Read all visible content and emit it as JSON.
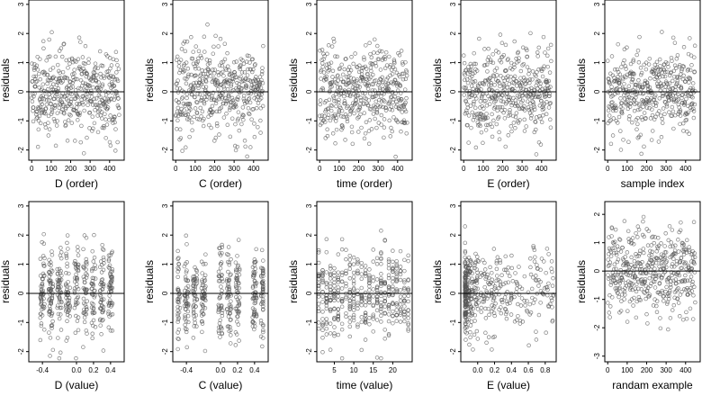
{
  "chart_data": [
    {
      "type": "scatter",
      "xlabel": "D (order)",
      "ylabel": "residuals",
      "xlim": [
        -15,
        475
      ],
      "ylim": [
        -2.35,
        3.15
      ],
      "xticks": [
        0,
        100,
        200,
        300,
        400
      ],
      "yticks": [
        -2,
        -1,
        0,
        1,
        2,
        3
      ],
      "reference_line_y": 0,
      "point_spec": {
        "n": 450,
        "x_mode": "order",
        "seed": 11
      }
    },
    {
      "type": "scatter",
      "xlabel": "C (order)",
      "ylabel": "residuals",
      "xlim": [
        -15,
        475
      ],
      "ylim": [
        -2.35,
        3.15
      ],
      "xticks": [
        0,
        100,
        200,
        300,
        400
      ],
      "yticks": [
        -2,
        -1,
        0,
        1,
        2,
        3
      ],
      "reference_line_y": 0,
      "point_spec": {
        "n": 450,
        "x_mode": "order",
        "seed": 23
      }
    },
    {
      "type": "scatter",
      "xlabel": "time (order)",
      "ylabel": "residuals",
      "xlim": [
        -15,
        475
      ],
      "ylim": [
        -2.35,
        3.15
      ],
      "xticks": [
        0,
        100,
        200,
        300,
        400
      ],
      "yticks": [
        -2,
        -1,
        0,
        1,
        2,
        3
      ],
      "reference_line_y": 0,
      "point_spec": {
        "n": 450,
        "x_mode": "order",
        "seed": 37
      }
    },
    {
      "type": "scatter",
      "xlabel": "E (order)",
      "ylabel": "residuals",
      "xlim": [
        -15,
        475
      ],
      "ylim": [
        -2.35,
        3.15
      ],
      "xticks": [
        0,
        100,
        200,
        300,
        400
      ],
      "yticks": [
        -2,
        -1,
        0,
        1,
        2,
        3
      ],
      "reference_line_y": 0,
      "point_spec": {
        "n": 450,
        "x_mode": "order",
        "seed": 41
      }
    },
    {
      "type": "scatter",
      "xlabel": "sample index",
      "ylabel": "residuals",
      "xlim": [
        -15,
        475
      ],
      "ylim": [
        -2.35,
        3.15
      ],
      "xticks": [
        0,
        100,
        200,
        300,
        400
      ],
      "yticks": [
        -2,
        -1,
        0,
        1,
        2,
        3
      ],
      "reference_line_y": 0,
      "point_spec": {
        "n": 450,
        "x_mode": "order",
        "seed": 53
      }
    },
    {
      "type": "scatter",
      "xlabel": "D (value)",
      "ylabel": "residuals",
      "xlim": [
        -0.56,
        0.56
      ],
      "ylim": [
        -2.35,
        3.15
      ],
      "xticks": [
        -0.4,
        0.0,
        0.2,
        0.4
      ],
      "xtick_labels": [
        "-0.4",
        "0.0",
        "0.2",
        "0.4"
      ],
      "yticks": [
        -2,
        -1,
        0,
        1,
        2,
        3
      ],
      "reference_line_y": 0,
      "point_spec": {
        "n": 450,
        "x_mode": "clustered",
        "x_min": -0.5,
        "x_max": 0.5,
        "x_centers": [
          -0.4,
          -0.3,
          -0.2,
          -0.1,
          0.0,
          0.1,
          0.2,
          0.3,
          0.4
        ],
        "seed": 67
      }
    },
    {
      "type": "scatter",
      "xlabel": "C (value)",
      "ylabel": "residuals",
      "xlim": [
        -0.56,
        0.56
      ],
      "ylim": [
        -2.35,
        3.15
      ],
      "xticks": [
        -0.4,
        0.0,
        0.2,
        0.4
      ],
      "xtick_labels": [
        "-0.4",
        "0.0",
        "0.2",
        "0.4"
      ],
      "yticks": [
        -2,
        -1,
        0,
        1,
        2,
        3
      ],
      "reference_line_y": 0,
      "point_spec": {
        "n": 450,
        "x_mode": "clustered",
        "x_min": -0.5,
        "x_max": 0.5,
        "x_centers": [
          -0.5,
          -0.4,
          -0.3,
          -0.2,
          0.0,
          0.1,
          0.2,
          0.4,
          0.5
        ],
        "seed": 79
      }
    },
    {
      "type": "scatter",
      "xlabel": "time (value)",
      "ylabel": "residuals",
      "xlim": [
        0.5,
        25
      ],
      "ylim": [
        -2.35,
        3.15
      ],
      "xticks": [
        5,
        10,
        15,
        20
      ],
      "xtick_labels": [
        "5",
        "10",
        "15",
        "20"
      ],
      "yticks": [
        -2,
        -1,
        0,
        1,
        2,
        3
      ],
      "reference_line_y": 0,
      "point_spec": {
        "n": 450,
        "x_mode": "integer",
        "x_min": 1,
        "x_max": 24,
        "seed": 83
      }
    },
    {
      "type": "scatter",
      "xlabel": "E (value)",
      "ylabel": "residuals",
      "xlim": [
        -0.2,
        0.93
      ],
      "ylim": [
        -2.35,
        3.15
      ],
      "xticks": [
        0.0,
        0.2,
        0.4,
        0.6,
        0.8
      ],
      "xtick_labels": [
        "0.0",
        "0.2",
        "0.4",
        "0.6",
        "0.8"
      ],
      "yticks": [
        -2,
        -1,
        0,
        1,
        2,
        3
      ],
      "reference_line_y": 0,
      "point_spec": {
        "n": 450,
        "x_mode": "skewed",
        "x_min": -0.15,
        "x_max": 0.9,
        "seed": 97
      }
    },
    {
      "type": "scatter",
      "xlabel": "randam example",
      "ylabel": "residuals",
      "xlim": [
        -15,
        475
      ],
      "ylim": [
        -3.2,
        2.45
      ],
      "xticks": [
        0,
        100,
        200,
        300,
        400
      ],
      "yticks": [
        -3,
        -2,
        -1,
        0,
        1,
        2
      ],
      "reference_line_y": 0,
      "point_spec": {
        "n": 450,
        "x_mode": "order",
        "seed": 101
      }
    }
  ]
}
